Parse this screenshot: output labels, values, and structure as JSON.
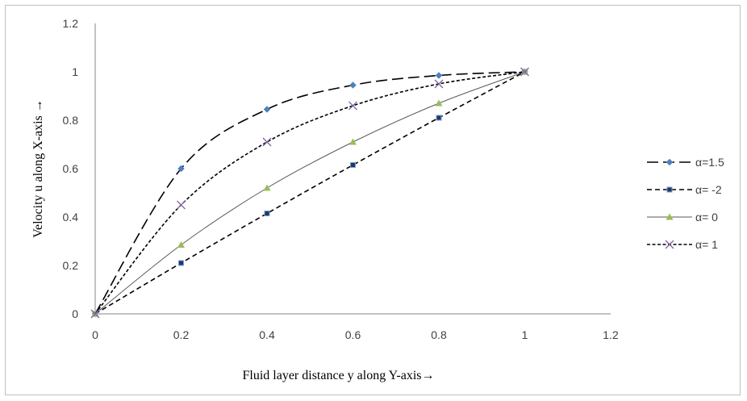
{
  "chart_data": {
    "type": "line",
    "title": "",
    "xlabel": "Fluid layer distance y along  Y-axis→",
    "ylabel": "Velocity u  along X-axis →",
    "xlim": [
      0,
      1.2
    ],
    "ylim": [
      0,
      1.2
    ],
    "xticks": [
      "0",
      "0.2",
      "0.4",
      "0.6",
      "0.8",
      "1",
      "1.2"
    ],
    "yticks": [
      "0",
      "0.2",
      "0.4",
      "0.6",
      "0.8",
      "1",
      "1.2"
    ],
    "grid": false,
    "legend_position": "right",
    "series": [
      {
        "name": "α=1.5",
        "color": "#000000",
        "marker": "diamond",
        "marker_color": "#4f81bd",
        "dash": "long-dash",
        "x": [
          0,
          0.2,
          0.4,
          0.6,
          0.8,
          1
        ],
        "y": [
          0,
          0.6,
          0.845,
          0.945,
          0.985,
          1
        ]
      },
      {
        "name": "α= -2",
        "color": "#000000",
        "marker": "square",
        "marker_color": "#1f3864",
        "dash": "dash",
        "x": [
          0,
          0.2,
          0.4,
          0.6,
          0.8,
          1
        ],
        "y": [
          0,
          0.21,
          0.415,
          0.615,
          0.81,
          1
        ]
      },
      {
        "name": "α= 0",
        "color": "#595959",
        "marker": "triangle",
        "marker_color": "#9bbb59",
        "dash": "solid",
        "x": [
          0,
          0.2,
          0.4,
          0.6,
          0.8,
          1
        ],
        "y": [
          0,
          0.285,
          0.52,
          0.71,
          0.87,
          1
        ]
      },
      {
        "name": "α= 1",
        "color": "#000000",
        "marker": "x",
        "marker_color": "#8064a2",
        "dash": "short-dash",
        "x": [
          0,
          0.2,
          0.4,
          0.6,
          0.8,
          1
        ],
        "y": [
          0,
          0.45,
          0.71,
          0.86,
          0.95,
          1
        ]
      }
    ]
  }
}
